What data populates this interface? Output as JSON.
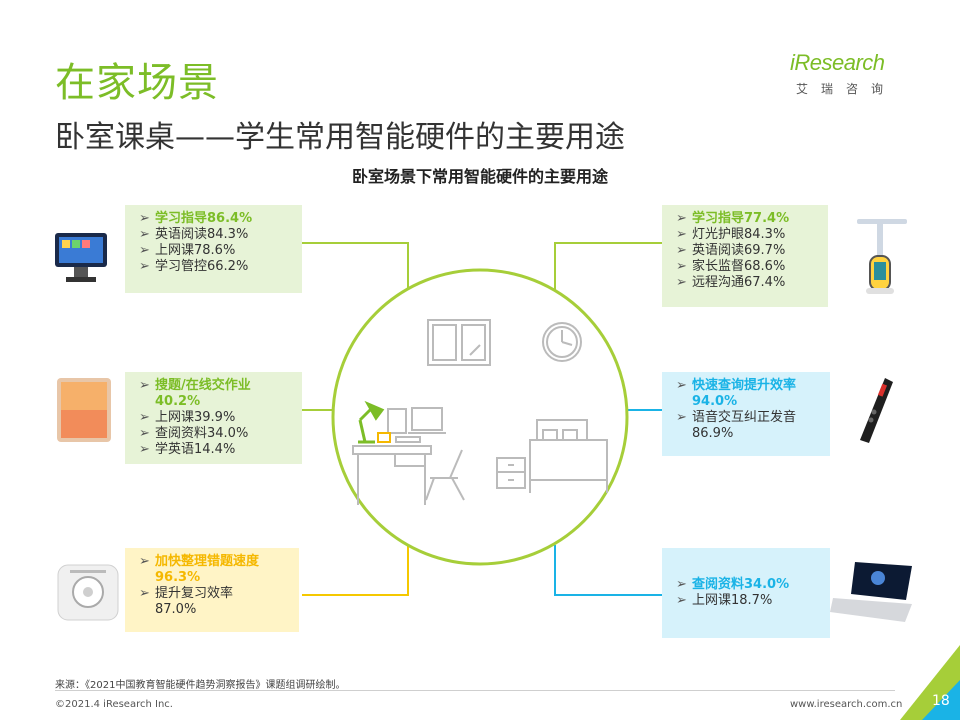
{
  "title": "在家场景",
  "subtitle": "卧室课桌——学生常用智能硬件的主要用途",
  "chart_title": "卧室场景下常用智能硬件的主要用途",
  "logo": {
    "brand": "iResearch",
    "sub": "艾瑞咨询"
  },
  "boxes": {
    "tl": {
      "head": "学习指导86.4%",
      "items": [
        "英语阅读84.3%",
        "上网课78.6%",
        "学习管控66.2%"
      ]
    },
    "ml": {
      "head1": "搜题/在线交作业",
      "head2": "40.2%",
      "items": [
        "上网课39.9%",
        "查阅资料34.0%",
        "学英语14.4%"
      ]
    },
    "bl": {
      "head1": "加快整理错题速度",
      "head2": "96.3%",
      "item1a": "提升复习效率",
      "item1b": "87.0%"
    },
    "tr": {
      "head": "学习指导77.4%",
      "items": [
        "灯光护眼84.3%",
        "英语阅读69.7%",
        "家长监督68.6%",
        "远程沟通67.4%"
      ]
    },
    "mr": {
      "head1": "快速查询提升效率",
      "head2": "94.0%",
      "item1a": "语音交互纠正发音",
      "item1b": "86.9%"
    },
    "br": {
      "head": "查阅资料34.0%",
      "items": [
        "上网课18.7%"
      ]
    }
  },
  "arrow": "➢",
  "colors": {
    "green": "#7cbd27",
    "blue": "#1ab3e6",
    "yellow": "#f5b800"
  },
  "footer": {
    "source": "来源：《2021中国教育智能硬件趋势洞察报告》课题组调研绘制。",
    "copyright": "©2021.4 iResearch Inc.",
    "url": "www.iresearch.com.cn",
    "page": "18"
  }
}
